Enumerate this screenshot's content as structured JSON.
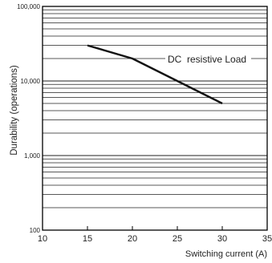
{
  "chart_data": {
    "type": "line",
    "title": "",
    "xlabel": "Switching current (A)",
    "ylabel": "Durability (operations)",
    "xlim": [
      10,
      35
    ],
    "ylim": [
      100,
      100000
    ],
    "y_scale": "log",
    "x_ticks": [
      10,
      15,
      20,
      25,
      30,
      35
    ],
    "x_tick_labels": [
      "10",
      "15",
      "20",
      "25",
      "30",
      "35"
    ],
    "y_ticks": [
      100,
      1000,
      10000,
      100000
    ],
    "y_tick_labels": [
      "100",
      "1,000",
      "10,000",
      "100,000"
    ],
    "grid": "horizontal",
    "series": [
      {
        "name": "DC  resistive Load",
        "x": [
          15,
          20,
          25,
          30
        ],
        "y": [
          30000,
          20000,
          10000,
          5000
        ]
      }
    ],
    "colors": {
      "line": "#111111",
      "grid": "#222222",
      "axis": "#000000"
    }
  }
}
